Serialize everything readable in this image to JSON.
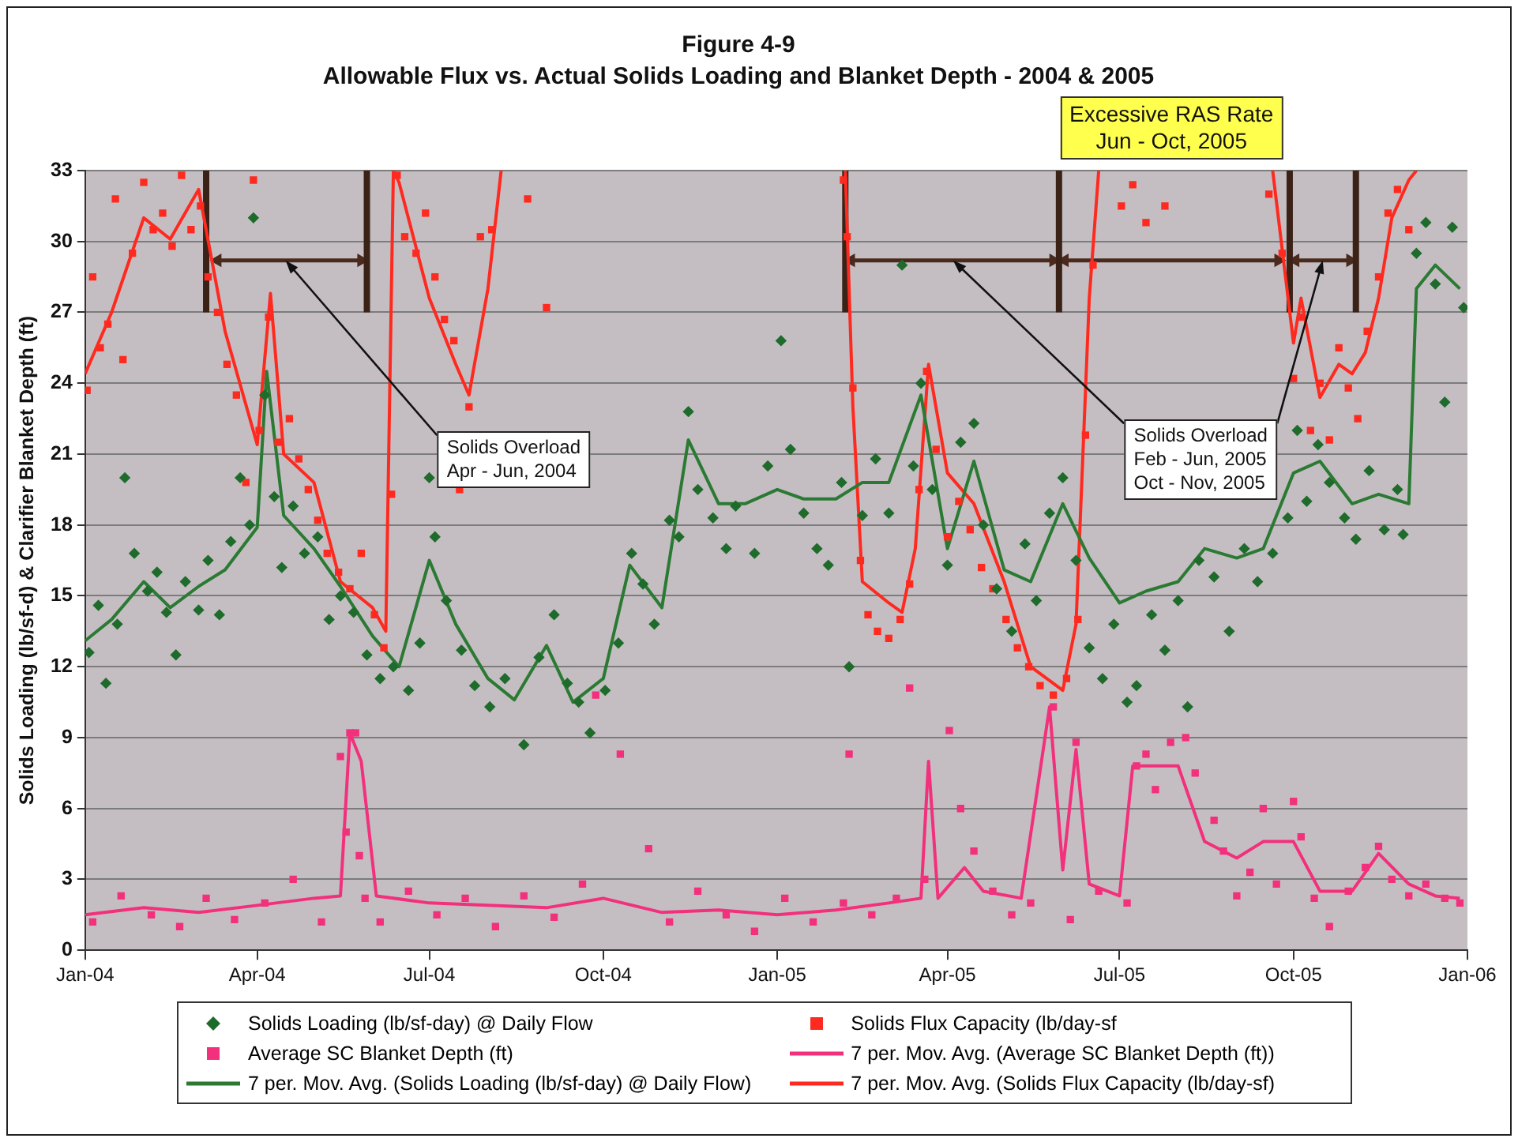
{
  "chart_data": {
    "type": "line",
    "title": "Figure 4-9",
    "subtitle": "Allowable Flux vs. Actual Solids Loading and Blanket Depth - 2004 & 2005",
    "ylabel": "Solids Loading (lb/sf-d) & Clarifier Blanket Depth (ft)",
    "xlim": [
      "2004-01-01",
      "2006-01-01"
    ],
    "xticks": [
      {
        "value": "2004-01-01",
        "label": "Jan-04"
      },
      {
        "value": "2004-04-01",
        "label": "Apr-04"
      },
      {
        "value": "2004-07-01",
        "label": "Jul-04"
      },
      {
        "value": "2004-10-01",
        "label": "Oct-04"
      },
      {
        "value": "2005-01-01",
        "label": "Jan-05"
      },
      {
        "value": "2005-04-01",
        "label": "Apr-05"
      },
      {
        "value": "2005-07-01",
        "label": "Jul-05"
      },
      {
        "value": "2005-10-01",
        "label": "Oct-05"
      },
      {
        "value": "2006-01-01",
        "label": "Jan-06"
      }
    ],
    "ylim": [
      0,
      33
    ],
    "yticks": [
      0,
      3,
      6,
      9,
      12,
      15,
      18,
      21,
      24,
      27,
      30,
      33
    ],
    "grid": "y",
    "legend": "bottom",
    "series": [
      {
        "name": "Solids Loading (lb/sf-day) @ Daily Flow",
        "type": "scatter",
        "marker": "diamond",
        "color": "#1e6b2c",
        "x": [
          "2004-01-03",
          "2004-01-08",
          "2004-01-12",
          "2004-01-18",
          "2004-01-22",
          "2004-01-27",
          "2004-02-03",
          "2004-02-08",
          "2004-02-13",
          "2004-02-18",
          "2004-02-23",
          "2004-03-01",
          "2004-03-06",
          "2004-03-12",
          "2004-03-18",
          "2004-03-23",
          "2004-03-28",
          "2004-03-30",
          "2004-04-05",
          "2004-04-10",
          "2004-04-14",
          "2004-04-20",
          "2004-04-26",
          "2004-05-03",
          "2004-05-09",
          "2004-05-15",
          "2004-05-22",
          "2004-05-29",
          "2004-06-05",
          "2004-06-12",
          "2004-06-20",
          "2004-06-26",
          "2004-07-01",
          "2004-07-04",
          "2004-07-10",
          "2004-07-18",
          "2004-07-25",
          "2004-08-02",
          "2004-08-10",
          "2004-08-20",
          "2004-08-28",
          "2004-09-05",
          "2004-09-12",
          "2004-09-18",
          "2004-09-24",
          "2004-10-02",
          "2004-10-09",
          "2004-10-16",
          "2004-10-22",
          "2004-10-28",
          "2004-11-05",
          "2004-11-10",
          "2004-11-15",
          "2004-11-20",
          "2004-11-28",
          "2004-12-05",
          "2004-12-10",
          "2004-12-20",
          "2004-12-27",
          "2005-01-03",
          "2005-01-08",
          "2005-01-15",
          "2005-01-22",
          "2005-01-28",
          "2005-02-04",
          "2005-02-08",
          "2005-02-15",
          "2005-02-22",
          "2005-03-01",
          "2005-03-08",
          "2005-03-14",
          "2005-03-18",
          "2005-03-24",
          "2005-04-01",
          "2005-04-08",
          "2005-04-15",
          "2005-04-20",
          "2005-04-27",
          "2005-05-05",
          "2005-05-12",
          "2005-05-18",
          "2005-05-25",
          "2005-06-01",
          "2005-06-08",
          "2005-06-15",
          "2005-06-22",
          "2005-06-28",
          "2005-07-05",
          "2005-07-10",
          "2005-07-18",
          "2005-07-25",
          "2005-08-01",
          "2005-08-06",
          "2005-08-12",
          "2005-08-20",
          "2005-08-28",
          "2005-09-05",
          "2005-09-12",
          "2005-09-20",
          "2005-09-28",
          "2005-10-03",
          "2005-10-08",
          "2005-10-14",
          "2005-10-20",
          "2005-10-28",
          "2005-11-03",
          "2005-11-10",
          "2005-11-18",
          "2005-11-25",
          "2005-11-28",
          "2005-12-05",
          "2005-12-10",
          "2005-12-15",
          "2005-12-20",
          "2005-12-24",
          "2005-12-30"
        ],
        "values": [
          12.6,
          14.6,
          11.3,
          13.8,
          20,
          16.8,
          15.2,
          16,
          14.3,
          12.5,
          15.6,
          14.4,
          16.5,
          14.2,
          17.3,
          20,
          18,
          31,
          23.5,
          19.2,
          16.2,
          18.8,
          16.8,
          17.5,
          14,
          15,
          14.3,
          12.5,
          11.5,
          12,
          11,
          13,
          20,
          17.5,
          14.8,
          12.7,
          11.2,
          10.3,
          11.5,
          8.7,
          12.4,
          14.2,
          11.3,
          10.5,
          9.2,
          11,
          13,
          16.8,
          15.5,
          13.8,
          18.2,
          17.5,
          22.8,
          19.5,
          18.3,
          17,
          18.8,
          16.8,
          20.5,
          25.8,
          21.2,
          18.5,
          17,
          16.3,
          19.8,
          12,
          18.4,
          20.8,
          18.5,
          29,
          20.5,
          24,
          19.5,
          16.3,
          21.5,
          22.3,
          18,
          15.3,
          13.5,
          17.2,
          14.8,
          18.5,
          20,
          16.5,
          12.8,
          11.5,
          13.8,
          10.5,
          11.2,
          14.2,
          12.7,
          14.8,
          10.3,
          16.5,
          15.8,
          13.5,
          17,
          15.6,
          16.8,
          18.3,
          22,
          19,
          21.4,
          19.8,
          18.3,
          17.4,
          20.3,
          17.8,
          19.5,
          17.6,
          29.5,
          30.8,
          28.2,
          23.2,
          30.6,
          27.2
        ]
      },
      {
        "name": "Solids Flux Capacity (lb/day-sf",
        "type": "scatter",
        "marker": "square",
        "color": "#ff2a1f",
        "x": [
          "2004-01-02",
          "2004-01-05",
          "2004-01-09",
          "2004-01-13",
          "2004-01-17",
          "2004-01-21",
          "2004-01-26",
          "2004-02-01",
          "2004-02-06",
          "2004-02-11",
          "2004-02-16",
          "2004-02-21",
          "2004-02-26",
          "2004-03-02",
          "2004-03-06",
          "2004-03-11",
          "2004-03-16",
          "2004-03-21",
          "2004-03-26",
          "2004-03-30",
          "2004-04-02",
          "2004-04-07",
          "2004-04-12",
          "2004-04-18",
          "2004-04-23",
          "2004-04-28",
          "2004-05-03",
          "2004-05-08",
          "2004-05-14",
          "2004-05-20",
          "2004-05-26",
          "2004-06-02",
          "2004-06-07",
          "2004-06-11",
          "2004-06-14",
          "2004-06-18",
          "2004-06-24",
          "2004-06-29",
          "2004-07-04",
          "2004-07-09",
          "2004-07-14",
          "2004-07-17",
          "2004-07-22",
          "2004-07-28",
          "2004-08-03",
          "2004-08-22",
          "2004-09-01",
          "2005-02-05",
          "2005-02-07",
          "2005-02-10",
          "2005-02-14",
          "2005-02-18",
          "2005-02-23",
          "2005-03-01",
          "2005-03-07",
          "2005-03-12",
          "2005-03-17",
          "2005-03-21",
          "2005-03-26",
          "2005-04-01",
          "2005-04-07",
          "2005-04-13",
          "2005-04-19",
          "2005-04-25",
          "2005-05-02",
          "2005-05-08",
          "2005-05-14",
          "2005-05-20",
          "2005-05-27",
          "2005-06-03",
          "2005-06-09",
          "2005-06-13",
          "2005-06-17",
          "2005-07-02",
          "2005-07-08",
          "2005-07-15",
          "2005-07-25",
          "2005-09-18",
          "2005-09-25",
          "2005-10-01",
          "2005-10-05",
          "2005-10-10",
          "2005-10-15",
          "2005-10-20",
          "2005-10-25",
          "2005-10-30",
          "2005-11-04",
          "2005-11-09",
          "2005-11-15",
          "2005-11-20",
          "2005-11-25",
          "2005-12-01"
        ],
        "values": [
          23.7,
          28.5,
          25.5,
          26.5,
          31.8,
          25,
          29.5,
          32.5,
          30.5,
          31.2,
          29.8,
          32.8,
          30.5,
          31.5,
          28.5,
          27,
          24.8,
          23.5,
          19.8,
          32.6,
          22,
          26.8,
          21.5,
          22.5,
          20.8,
          19.5,
          18.2,
          16.8,
          16,
          15.3,
          16.8,
          14.2,
          12.8,
          19.3,
          32.8,
          30.2,
          29.5,
          31.2,
          28.5,
          26.7,
          25.8,
          19.5,
          23,
          30.2,
          30.5,
          31.8,
          27.2,
          32.6,
          30.2,
          23.8,
          16.5,
          14.2,
          13.5,
          13.2,
          14,
          15.5,
          19.5,
          24.5,
          21.2,
          17.5,
          19,
          17.8,
          16.2,
          15.3,
          14,
          12.8,
          12,
          11.2,
          10.8,
          11.5,
          14,
          21.8,
          29,
          31.5,
          32.4,
          30.8,
          31.5,
          32,
          29.5,
          24.2,
          26.8,
          22,
          24,
          21.6,
          25.5,
          23.8,
          22.5,
          26.2,
          28.5,
          31.2,
          32.2,
          30.5
        ]
      },
      {
        "name": "Average SC Blanket Depth (ft)",
        "type": "scatter",
        "marker": "square",
        "color": "#f2307c",
        "x": [
          "2004-01-05",
          "2004-01-20",
          "2004-02-05",
          "2004-02-20",
          "2004-03-05",
          "2004-03-20",
          "2004-04-05",
          "2004-04-20",
          "2004-05-05",
          "2004-05-15",
          "2004-05-18",
          "2004-05-20",
          "2004-05-23",
          "2004-05-25",
          "2004-05-28",
          "2004-06-05",
          "2004-06-20",
          "2004-07-05",
          "2004-07-20",
          "2004-08-05",
          "2004-08-20",
          "2004-09-05",
          "2004-09-20",
          "2004-09-27",
          "2004-10-10",
          "2004-10-25",
          "2004-11-05",
          "2004-11-20",
          "2004-12-05",
          "2004-12-20",
          "2005-01-05",
          "2005-01-20",
          "2005-02-05",
          "2005-02-08",
          "2005-02-20",
          "2005-03-05",
          "2005-03-12",
          "2005-03-20",
          "2005-04-02",
          "2005-04-08",
          "2005-04-15",
          "2005-04-25",
          "2005-05-05",
          "2005-05-15",
          "2005-05-27",
          "2005-06-05",
          "2005-06-08",
          "2005-06-20",
          "2005-07-05",
          "2005-07-10",
          "2005-07-15",
          "2005-07-20",
          "2005-07-28",
          "2005-08-05",
          "2005-08-10",
          "2005-08-20",
          "2005-08-25",
          "2005-09-01",
          "2005-09-08",
          "2005-09-15",
          "2005-09-22",
          "2005-10-01",
          "2005-10-05",
          "2005-10-12",
          "2005-10-20",
          "2005-10-30",
          "2005-11-08",
          "2005-11-15",
          "2005-11-22",
          "2005-12-01",
          "2005-12-10",
          "2005-12-20",
          "2005-12-28"
        ],
        "values": [
          1.2,
          2.3,
          1.5,
          1,
          2.2,
          1.3,
          2,
          3,
          1.2,
          8.2,
          5,
          9.2,
          9.2,
          4,
          2.2,
          1.2,
          2.5,
          1.5,
          2.2,
          1,
          2.3,
          1.4,
          2.8,
          10.8,
          8.3,
          4.3,
          1.2,
          2.5,
          1.5,
          0.8,
          2.2,
          1.2,
          2,
          8.3,
          1.5,
          2.2,
          11.1,
          3,
          9.3,
          6,
          4.2,
          2.5,
          1.5,
          2,
          10.3,
          1.3,
          8.8,
          2.5,
          2,
          7.8,
          8.3,
          6.8,
          8.8,
          9,
          7.5,
          5.5,
          4.2,
          2.3,
          3.3,
          6,
          2.8,
          6.3,
          4.8,
          2.2,
          1,
          2.5,
          3.5,
          4.4,
          3,
          2.3,
          2.8,
          2.2,
          2
        ]
      },
      {
        "name": "7 per. Mov. Avg. (Average SC Blanket Depth (ft))",
        "type": "line",
        "marker": "none",
        "color": "#f2307c",
        "x": [
          "2004-01-01",
          "2004-02-01",
          "2004-03-01",
          "2004-04-01",
          "2004-05-01",
          "2004-05-15",
          "2004-05-20",
          "2004-05-26",
          "2004-06-03",
          "2004-07-01",
          "2004-08-01",
          "2004-09-01",
          "2004-10-01",
          "2004-11-01",
          "2004-12-01",
          "2005-01-01",
          "2005-02-01",
          "2005-03-01",
          "2005-03-18",
          "2005-03-22",
          "2005-03-27",
          "2005-04-10",
          "2005-04-20",
          "2005-05-10",
          "2005-05-25",
          "2005-06-01",
          "2005-06-08",
          "2005-06-15",
          "2005-07-01",
          "2005-07-08",
          "2005-08-01",
          "2005-08-15",
          "2005-09-01",
          "2005-09-15",
          "2005-10-01",
          "2005-10-15",
          "2005-11-01",
          "2005-11-15",
          "2005-12-01",
          "2005-12-15",
          "2005-12-28"
        ],
        "values": [
          1.5,
          1.8,
          1.6,
          1.9,
          2.2,
          2.3,
          9.2,
          8,
          2.3,
          2,
          1.9,
          1.8,
          2.2,
          1.6,
          1.7,
          1.5,
          1.7,
          2,
          2.2,
          8,
          2.2,
          3.5,
          2.5,
          2.2,
          10.3,
          3.4,
          8.5,
          2.8,
          2.3,
          7.8,
          7.8,
          4.6,
          3.9,
          4.6,
          4.6,
          2.5,
          2.5,
          4.1,
          2.8,
          2.3,
          2.2
        ]
      },
      {
        "name": "7 per. Mov. Avg. (Solids Loading (lb/sf-day) @ Daily Flow)",
        "type": "line",
        "marker": "none",
        "color": "#2b7a33",
        "x": [
          "2004-01-01",
          "2004-01-15",
          "2004-02-01",
          "2004-02-15",
          "2004-03-01",
          "2004-03-15",
          "2004-04-01",
          "2004-04-06",
          "2004-04-15",
          "2004-05-01",
          "2004-05-15",
          "2004-06-01",
          "2004-06-15",
          "2004-07-01",
          "2004-07-15",
          "2004-08-01",
          "2004-08-15",
          "2004-09-01",
          "2004-09-15",
          "2004-10-01",
          "2004-10-15",
          "2004-11-01",
          "2004-11-15",
          "2004-12-01",
          "2004-12-15",
          "2005-01-01",
          "2005-01-15",
          "2005-02-01",
          "2005-02-15",
          "2005-03-01",
          "2005-03-18",
          "2005-04-01",
          "2005-04-15",
          "2005-05-01",
          "2005-05-15",
          "2005-06-01",
          "2005-06-15",
          "2005-07-01",
          "2005-07-15",
          "2005-08-01",
          "2005-08-15",
          "2005-09-01",
          "2005-09-15",
          "2005-10-01",
          "2005-10-15",
          "2005-11-01",
          "2005-11-15",
          "2005-12-01",
          "2005-12-05",
          "2005-12-15",
          "2005-12-28"
        ],
        "values": [
          13.1,
          14,
          15.6,
          14.5,
          15.4,
          16.1,
          17.9,
          24.5,
          18.4,
          17,
          15.4,
          13.3,
          12,
          16.5,
          13.8,
          11.5,
          10.6,
          12.9,
          10.5,
          11.5,
          16.3,
          14.5,
          21.6,
          18.9,
          18.9,
          19.5,
          19.1,
          19.1,
          19.8,
          19.8,
          23.5,
          17,
          20.7,
          16.1,
          15.6,
          18.9,
          16.6,
          14.7,
          15.2,
          15.6,
          17,
          16.6,
          17,
          20.2,
          20.7,
          18.9,
          19.3,
          18.9,
          28,
          29,
          28
        ]
      },
      {
        "name": "7 per. Mov. Avg. (Solids Flux Capacity (lb/day-sf)",
        "type": "line",
        "marker": "none",
        "color": "#ff2a1f",
        "x": [
          "2004-01-01",
          "2004-01-15",
          "2004-02-01",
          "2004-02-15",
          "2004-03-01",
          "2004-03-15",
          "2004-04-01",
          "2004-04-08",
          "2004-04-15",
          "2004-05-01",
          "2004-05-15",
          "2004-06-01",
          "2004-06-08",
          "2004-06-12",
          "2004-06-15",
          "2004-07-01",
          "2004-07-15",
          "2004-07-22",
          "2004-08-01",
          "2004-08-08",
          "2004-08-15",
          "2005-02-01",
          "2005-02-06",
          "2005-02-10",
          "2005-02-15",
          "2005-03-01",
          "2005-03-08",
          "2005-03-15",
          "2005-03-22",
          "2005-04-01",
          "2005-04-15",
          "2005-05-01",
          "2005-05-15",
          "2005-06-01",
          "2005-06-08",
          "2005-06-15",
          "2005-06-20",
          "2005-06-25",
          "2005-09-15",
          "2005-09-20",
          "2005-10-01",
          "2005-10-05",
          "2005-10-15",
          "2005-10-25",
          "2005-11-01",
          "2005-11-08",
          "2005-11-15",
          "2005-11-22",
          "2005-12-01",
          "2005-12-05"
        ],
        "values": [
          24.4,
          27,
          31,
          30.1,
          32.2,
          26.2,
          21.4,
          27.8,
          21,
          19.8,
          15.6,
          14.5,
          13.5,
          33,
          32.5,
          27.6,
          24.8,
          23.5,
          28,
          33,
          null,
          null,
          33,
          23,
          15.6,
          14.7,
          14.3,
          17,
          24.8,
          20.2,
          18.9,
          15.6,
          12,
          11,
          13.8,
          27.6,
          33,
          null,
          null,
          33,
          25.7,
          27.6,
          23.4,
          24.8,
          24.4,
          25.3,
          27.6,
          31,
          32.6,
          33
        ]
      },
      {
        "type": "line",
        "marker": "none",
        "color": "#3b2217",
        "x": [
          "2004-03-05",
          "2004-03-05"
        ],
        "values": [
          27,
          33
        ]
      },
      {
        "type": "line",
        "marker": "none",
        "color": "#3b2217",
        "x": [
          "2004-05-29",
          "2004-05-29"
        ],
        "values": [
          27,
          33
        ]
      },
      {
        "type": "line",
        "marker": "none",
        "color": "#3b2217",
        "x": [
          "2005-02-06",
          "2005-02-06"
        ],
        "values": [
          27,
          33
        ]
      },
      {
        "type": "line",
        "marker": "none",
        "color": "#3b2217",
        "x": [
          "2005-05-30",
          "2005-05-30"
        ],
        "values": [
          27,
          33
        ]
      },
      {
        "type": "line",
        "marker": "none",
        "color": "#3b2217",
        "x": [
          "2005-09-29",
          "2005-09-29"
        ],
        "values": [
          27,
          33
        ]
      },
      {
        "type": "line",
        "marker": "none",
        "color": "#3b2217",
        "x": [
          "2005-11-03",
          "2005-11-03"
        ],
        "values": [
          27,
          33
        ]
      },
      {
        "type": "line",
        "marker": "triangle",
        "color": "#4a2a1c",
        "x": [
          "2004-03-11",
          "2004-05-26"
        ],
        "values": [
          29.2,
          29.2
        ]
      },
      {
        "type": "line",
        "marker": "triangle",
        "color": "#4a2a1c",
        "x": [
          "2005-02-09",
          "2005-05-27"
        ],
        "values": [
          29.2,
          29.2
        ]
      },
      {
        "type": "line",
        "marker": "triangle",
        "color": "#4a2a1c",
        "x": [
          "2005-06-02",
          "2005-09-23"
        ],
        "values": [
          29.2,
          29.2
        ]
      },
      {
        "type": "line",
        "marker": "triangle",
        "color": "#4a2a1c",
        "x": [
          "2005-10-02",
          "2005-10-31"
        ],
        "values": [
          29.2,
          29.2
        ]
      }
    ],
    "annotations": [
      {
        "text": "Solids Overload\nApr - Jun, 2004",
        "x": "2004-04-16",
        "y": 29.2
      },
      {
        "text": "Solids Overload\nFeb - Jun, 2005\nOct - Nov, 2005",
        "x": "2005-04-04",
        "y": 29.2
      },
      "Excessive RAS Rate\nJun - Oct, 2005"
    ]
  }
}
